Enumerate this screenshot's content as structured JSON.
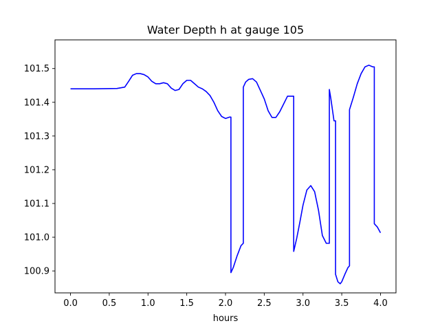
{
  "chart_data": {
    "type": "line",
    "title": "Water Depth h at gauge 105",
    "xlabel": "hours",
    "ylabel": "",
    "xlim": [
      -0.2,
      4.2
    ],
    "ylim": [
      100.835,
      101.585
    ],
    "x_ticks": [
      {
        "value": 0.0,
        "label": "0.0"
      },
      {
        "value": 0.5,
        "label": "0.5"
      },
      {
        "value": 1.0,
        "label": "1.0"
      },
      {
        "value": 1.5,
        "label": "1.5"
      },
      {
        "value": 2.0,
        "label": "2.0"
      },
      {
        "value": 2.5,
        "label": "2.5"
      },
      {
        "value": 3.0,
        "label": "3.0"
      },
      {
        "value": 3.5,
        "label": "3.5"
      },
      {
        "value": 4.0,
        "label": "4.0"
      }
    ],
    "y_ticks": [
      {
        "value": 100.9,
        "label": "100.9"
      },
      {
        "value": 101.0,
        "label": "101.0"
      },
      {
        "value": 101.1,
        "label": "101.1"
      },
      {
        "value": 101.2,
        "label": "101.2"
      },
      {
        "value": 101.3,
        "label": "101.3"
      },
      {
        "value": 101.4,
        "label": "101.4"
      },
      {
        "value": 101.5,
        "label": "101.5"
      }
    ],
    "grid": false,
    "legend": "none",
    "series": [
      {
        "color": "#0000ff",
        "x": [
          0.0,
          0.3,
          0.6,
          0.7,
          0.75,
          0.8,
          0.85,
          0.9,
          0.95,
          1.0,
          1.05,
          1.1,
          1.15,
          1.2,
          1.25,
          1.3,
          1.35,
          1.4,
          1.45,
          1.5,
          1.55,
          1.6,
          1.65,
          1.7,
          1.75,
          1.8,
          1.85,
          1.9,
          1.95,
          2.0,
          2.05,
          2.07,
          2.07,
          2.1,
          2.15,
          2.2,
          2.23,
          2.23,
          2.26,
          2.3,
          2.35,
          2.4,
          2.45,
          2.5,
          2.55,
          2.6,
          2.65,
          2.7,
          2.75,
          2.8,
          2.85,
          2.88,
          2.88,
          2.92,
          2.96,
          3.0,
          3.05,
          3.1,
          3.15,
          3.2,
          3.25,
          3.3,
          3.34,
          3.34,
          3.36,
          3.4,
          3.42,
          3.42,
          3.45,
          3.48,
          3.5,
          3.54,
          3.58,
          3.6,
          3.6,
          3.65,
          3.7,
          3.75,
          3.8,
          3.85,
          3.9,
          3.92,
          3.92,
          3.96,
          4.0
        ],
        "y": [
          101.44,
          101.44,
          101.441,
          101.445,
          101.462,
          101.48,
          101.485,
          101.485,
          101.482,
          101.475,
          101.462,
          101.455,
          101.455,
          101.458,
          101.455,
          101.442,
          101.435,
          101.438,
          101.455,
          101.465,
          101.465,
          101.455,
          101.445,
          101.44,
          101.432,
          101.42,
          101.4,
          101.375,
          101.358,
          101.352,
          101.356,
          101.356,
          100.895,
          100.91,
          100.945,
          100.975,
          100.982,
          101.445,
          101.46,
          101.468,
          101.47,
          101.46,
          101.435,
          101.41,
          101.375,
          101.355,
          101.355,
          101.372,
          101.395,
          101.418,
          101.418,
          101.418,
          100.958,
          100.998,
          101.045,
          101.095,
          101.14,
          101.153,
          101.135,
          101.08,
          101.005,
          100.982,
          100.982,
          101.438,
          101.41,
          101.345,
          101.345,
          100.89,
          100.868,
          100.862,
          100.868,
          100.89,
          100.91,
          100.915,
          101.378,
          101.415,
          101.455,
          101.485,
          101.505,
          101.51,
          101.505,
          101.505,
          101.04,
          101.03,
          101.013
        ]
      }
    ]
  }
}
